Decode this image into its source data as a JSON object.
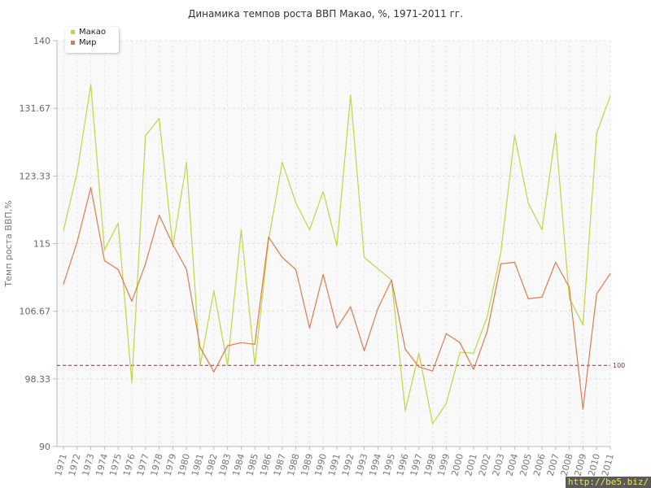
{
  "chart_data": {
    "type": "line",
    "title": "Динамика темпов роста ВВП Макао, %, 1971-2011 гг.",
    "xlabel": "",
    "ylabel": "Темп роста ВВП,%",
    "ylim": [
      90,
      140
    ],
    "yticks": [
      "90",
      "98.33",
      "106.67",
      "115",
      "123.33",
      "131.67",
      "140"
    ],
    "grid": true,
    "legend_position": "top-left",
    "x": [
      "1971",
      "1972",
      "1973",
      "1974",
      "1975",
      "1976",
      "1977",
      "1978",
      "1979",
      "1980",
      "1981",
      "1982",
      "1983",
      "1984",
      "1985",
      "1986",
      "1987",
      "1988",
      "1989",
      "1990",
      "1991",
      "1992",
      "1993",
      "1994",
      "1995",
      "1996",
      "1997",
      "1998",
      "1999",
      "2000",
      "2001",
      "2002",
      "2003",
      "2004",
      "2005",
      "2006",
      "2007",
      "2008",
      "2009",
      "2010",
      "2011"
    ],
    "series": [
      {
        "name": "Макао",
        "color": "#bcd843",
        "values": [
          116.6,
          123.8,
          134.6,
          114.2,
          117.5,
          97.9,
          128.3,
          130.4,
          114.6,
          125.0,
          100.0,
          109.2,
          100.0,
          116.7,
          100.0,
          115.4,
          125.0,
          120.0,
          116.7,
          121.4,
          114.7,
          133.3,
          113.3,
          111.9,
          110.5,
          94.4,
          101.5,
          92.8,
          95.3,
          101.6,
          101.5,
          106.0,
          114.0,
          128.3,
          120.0,
          116.7,
          128.6,
          108.3,
          105.0,
          128.6,
          133.2
        ]
      },
      {
        "name": "Мир",
        "color": "#e07a4b",
        "values": [
          110.0,
          115.2,
          121.9,
          112.9,
          111.8,
          107.9,
          112.5,
          118.5,
          114.9,
          111.8,
          102.2,
          99.2,
          102.4,
          102.8,
          102.6,
          115.8,
          113.3,
          111.8,
          104.6,
          111.2,
          104.6,
          107.2,
          101.8,
          107.0,
          110.5,
          102.0,
          99.8,
          99.3,
          103.9,
          102.8,
          99.5,
          104.2,
          112.5,
          112.7,
          108.2,
          108.4,
          112.7,
          109.6,
          94.6,
          108.8,
          111.3
        ]
      }
    ],
    "reference_line": {
      "value": 100,
      "label": "100",
      "color": "#8b2e3c"
    }
  },
  "watermark": "http://be5.biz/"
}
